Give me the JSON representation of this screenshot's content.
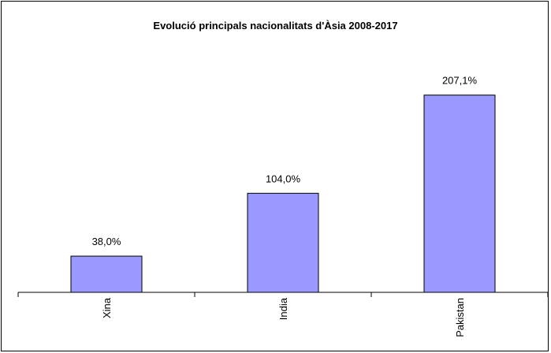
{
  "chart_data": {
    "type": "bar",
    "title": "Evolució principals nacionalitats d'Àsia 2008-2017",
    "categories": [
      "Xina",
      "India",
      "Pakistan"
    ],
    "values": [
      38.0,
      104.0,
      207.1
    ],
    "data_labels": [
      "38,0%",
      "104,0%",
      "207,1%"
    ],
    "xlabel": "",
    "ylabel": "",
    "ylim": [
      0,
      250
    ],
    "grid": false,
    "legend": "none",
    "colors": {
      "bar_fill": "#9999ff",
      "bar_stroke": "#000000"
    }
  }
}
